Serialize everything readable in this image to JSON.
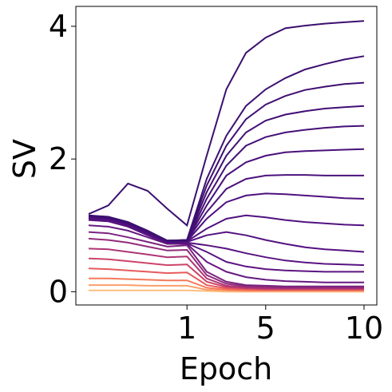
{
  "chart_data": {
    "type": "line",
    "xlabel": "Epoch",
    "ylabel": "SV",
    "categories": [
      null,
      null,
      null,
      null,
      null,
      "1",
      null,
      null,
      null,
      "5",
      null,
      null,
      null,
      null,
      "10"
    ],
    "ylim": [
      -0.2,
      4.3
    ],
    "yticks": [
      0,
      2,
      4
    ],
    "series": [
      {
        "color": "#3b0f70",
        "values": [
          1.17,
          1.3,
          1.63,
          1.52,
          1.25,
          1.0,
          2.05,
          3.05,
          3.6,
          3.83,
          3.97,
          4.01,
          4.04,
          4.06,
          4.08
        ]
      },
      {
        "color": "#3d0f71",
        "values": [
          1.15,
          1.13,
          1.05,
          0.92,
          0.77,
          0.78,
          1.7,
          2.35,
          2.8,
          3.05,
          3.22,
          3.35,
          3.43,
          3.5,
          3.55
        ]
      },
      {
        "color": "#3f0f72",
        "values": [
          1.14,
          1.12,
          1.04,
          0.91,
          0.77,
          0.78,
          1.6,
          2.2,
          2.6,
          2.82,
          2.95,
          3.04,
          3.09,
          3.13,
          3.15
        ]
      },
      {
        "color": "#420f74",
        "values": [
          1.14,
          1.12,
          1.04,
          0.91,
          0.77,
          0.78,
          1.5,
          2.05,
          2.4,
          2.58,
          2.67,
          2.72,
          2.76,
          2.78,
          2.8
        ]
      },
      {
        "color": "#451077",
        "values": [
          1.13,
          1.11,
          1.03,
          0.9,
          0.76,
          0.77,
          1.4,
          1.9,
          2.2,
          2.33,
          2.4,
          2.44,
          2.47,
          2.49,
          2.5
        ]
      },
      {
        "color": "#48107a",
        "values": [
          1.13,
          1.11,
          1.03,
          0.9,
          0.76,
          0.77,
          1.3,
          1.75,
          1.95,
          2.05,
          2.1,
          2.12,
          2.13,
          2.14,
          2.15
        ]
      },
      {
        "color": "#4b117c",
        "values": [
          1.12,
          1.1,
          1.02,
          0.89,
          0.76,
          0.77,
          1.2,
          1.55,
          1.7,
          1.75,
          1.76,
          1.76,
          1.75,
          1.75,
          1.75
        ]
      },
      {
        "color": "#4e117e",
        "values": [
          1.12,
          1.1,
          1.02,
          0.89,
          0.75,
          0.76,
          1.1,
          1.35,
          1.45,
          1.48,
          1.47,
          1.45,
          1.43,
          1.41,
          1.4
        ]
      },
      {
        "color": "#51127f",
        "values": [
          1.11,
          1.09,
          1.01,
          0.88,
          0.75,
          0.76,
          0.95,
          1.1,
          1.15,
          1.12,
          1.08,
          1.05,
          1.03,
          1.01,
          1.0
        ]
      },
      {
        "color": "#541280",
        "values": [
          1.1,
          1.08,
          1.0,
          0.87,
          0.74,
          0.75,
          0.85,
          0.9,
          0.85,
          0.78,
          0.72,
          0.67,
          0.64,
          0.62,
          0.6
        ]
      },
      {
        "color": "#581380",
        "values": [
          1.09,
          1.07,
          0.99,
          0.86,
          0.74,
          0.74,
          0.7,
          0.65,
          0.58,
          0.52,
          0.47,
          0.44,
          0.42,
          0.41,
          0.4
        ]
      },
      {
        "color": "#5c1481",
        "values": [
          1.08,
          1.06,
          0.98,
          0.85,
          0.73,
          0.73,
          0.6,
          0.45,
          0.38,
          0.34,
          0.32,
          0.31,
          0.3,
          0.3,
          0.3
        ]
      },
      {
        "color": "#661a80",
        "values": [
          1.0,
          0.98,
          0.92,
          0.82,
          0.72,
          0.72,
          0.45,
          0.3,
          0.22,
          0.18,
          0.16,
          0.15,
          0.14,
          0.14,
          0.14
        ]
      },
      {
        "color": "#7a227f",
        "values": [
          0.9,
          0.88,
          0.82,
          0.75,
          0.68,
          0.7,
          0.3,
          0.15,
          0.1,
          0.09,
          0.08,
          0.08,
          0.08,
          0.08,
          0.08
        ]
      },
      {
        "color": "#922b7a",
        "values": [
          0.8,
          0.78,
          0.74,
          0.68,
          0.62,
          0.63,
          0.25,
          0.12,
          0.08,
          0.07,
          0.06,
          0.06,
          0.06,
          0.06,
          0.06
        ]
      },
      {
        "color": "#ad3574",
        "values": [
          0.65,
          0.64,
          0.6,
          0.56,
          0.52,
          0.53,
          0.2,
          0.09,
          0.06,
          0.05,
          0.05,
          0.05,
          0.05,
          0.05,
          0.05
        ]
      },
      {
        "color": "#cc4468",
        "values": [
          0.5,
          0.49,
          0.46,
          0.43,
          0.4,
          0.41,
          0.15,
          0.07,
          0.05,
          0.04,
          0.04,
          0.04,
          0.04,
          0.04,
          0.04
        ]
      },
      {
        "color": "#e65a5c",
        "values": [
          0.35,
          0.34,
          0.32,
          0.3,
          0.28,
          0.29,
          0.1,
          0.05,
          0.04,
          0.03,
          0.03,
          0.03,
          0.03,
          0.03,
          0.03
        ]
      },
      {
        "color": "#f6795a",
        "values": [
          0.2,
          0.2,
          0.19,
          0.18,
          0.17,
          0.17,
          0.06,
          0.03,
          0.02,
          0.02,
          0.02,
          0.02,
          0.02,
          0.02,
          0.02
        ]
      },
      {
        "color": "#fb9f6a",
        "values": [
          0.1,
          0.1,
          0.1,
          0.09,
          0.09,
          0.09,
          0.03,
          0.02,
          0.01,
          0.01,
          0.01,
          0.01,
          0.01,
          0.01,
          0.01
        ]
      },
      {
        "color": "#fcbf80",
        "values": [
          0.02,
          0.02,
          0.02,
          0.02,
          0.02,
          0.02,
          0.01,
          0.0,
          0.0,
          0.0,
          0.0,
          0.0,
          0.0,
          0.0,
          0.0
        ]
      }
    ]
  }
}
